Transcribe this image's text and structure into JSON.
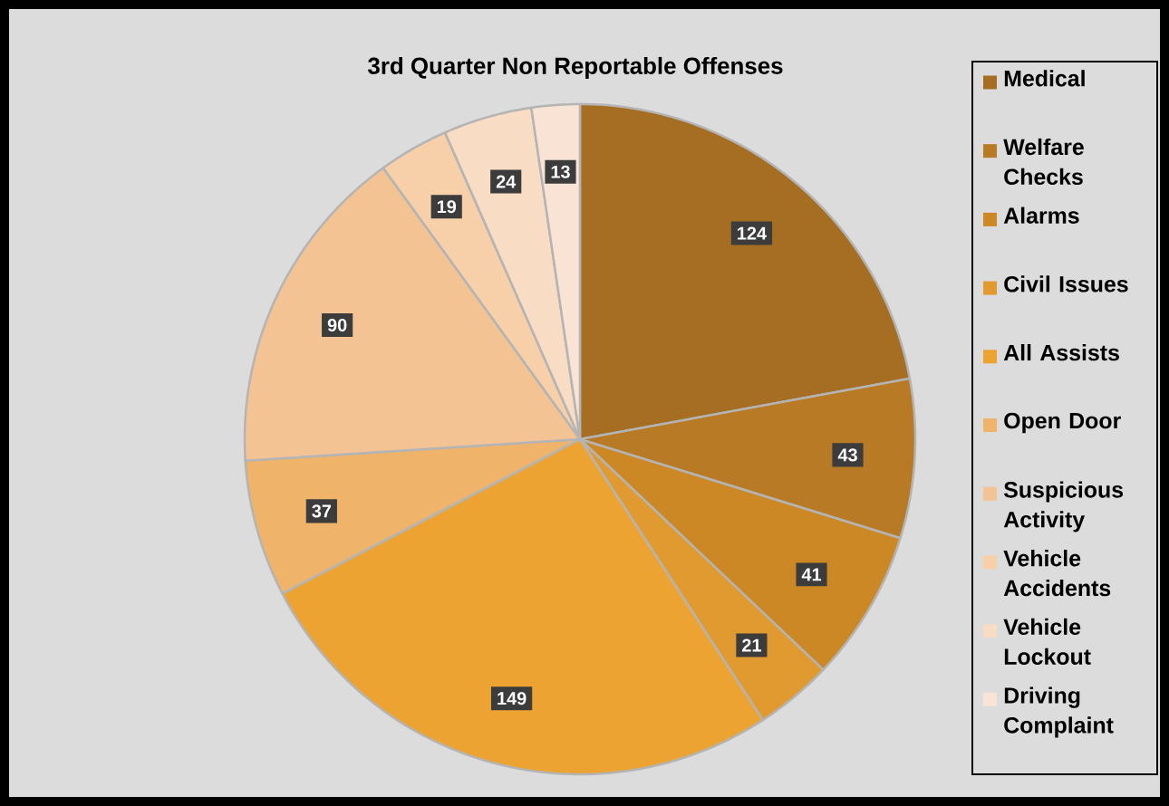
{
  "chart_data": {
    "type": "pie",
    "title": "3rd Quarter Non Reportable Offenses",
    "categories": [
      "Medical",
      "Welfare Checks",
      "Alarms",
      "Civil Issues",
      "All Assists",
      "Open Door",
      "Suspicious Activity",
      "Vehicle Accidents",
      "Vehicle Lockout",
      "Driving Complaint"
    ],
    "values": [
      124,
      43,
      41,
      21,
      149,
      37,
      90,
      19,
      24,
      13
    ],
    "colors": [
      "#a56e22",
      "#b87a24",
      "#cd8826",
      "#e09a2f",
      "#eda332",
      "#efb36a",
      "#f4c394",
      "#f7cfa8",
      "#f8dcc4",
      "#f9e3d4"
    ],
    "data_labels": true,
    "legend": "right"
  }
}
